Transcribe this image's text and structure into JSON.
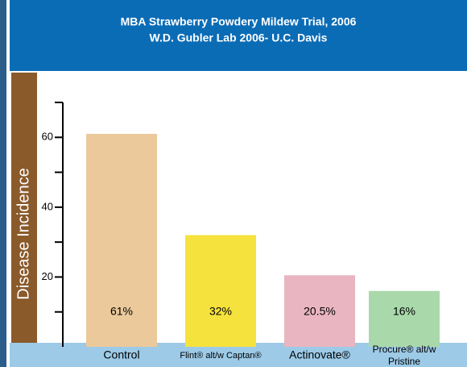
{
  "chart_data": {
    "type": "bar",
    "title": "MBA Strawberry Powdery Mildew Trial, 2006",
    "subtitle": "W.D. Gubler Lab 2006- U.C. Davis",
    "y_label": "Disease Incidence",
    "categories": [
      "Control",
      "Flint® alt/w Captan®",
      "Actinovate®",
      "Procure® alt/w Pristine"
    ],
    "values": [
      61,
      32,
      20.5,
      16
    ],
    "value_labels": [
      "61%",
      "32%",
      "20.5%",
      "16%"
    ],
    "colors": [
      "#ebc99b",
      "#f6e23c",
      "#e9b5c1",
      "#a9d9ab"
    ],
    "ylim": [
      0,
      70
    ],
    "yticks": [
      20,
      40,
      60
    ],
    "minor_yticks": [
      10,
      30,
      50,
      70
    ]
  }
}
